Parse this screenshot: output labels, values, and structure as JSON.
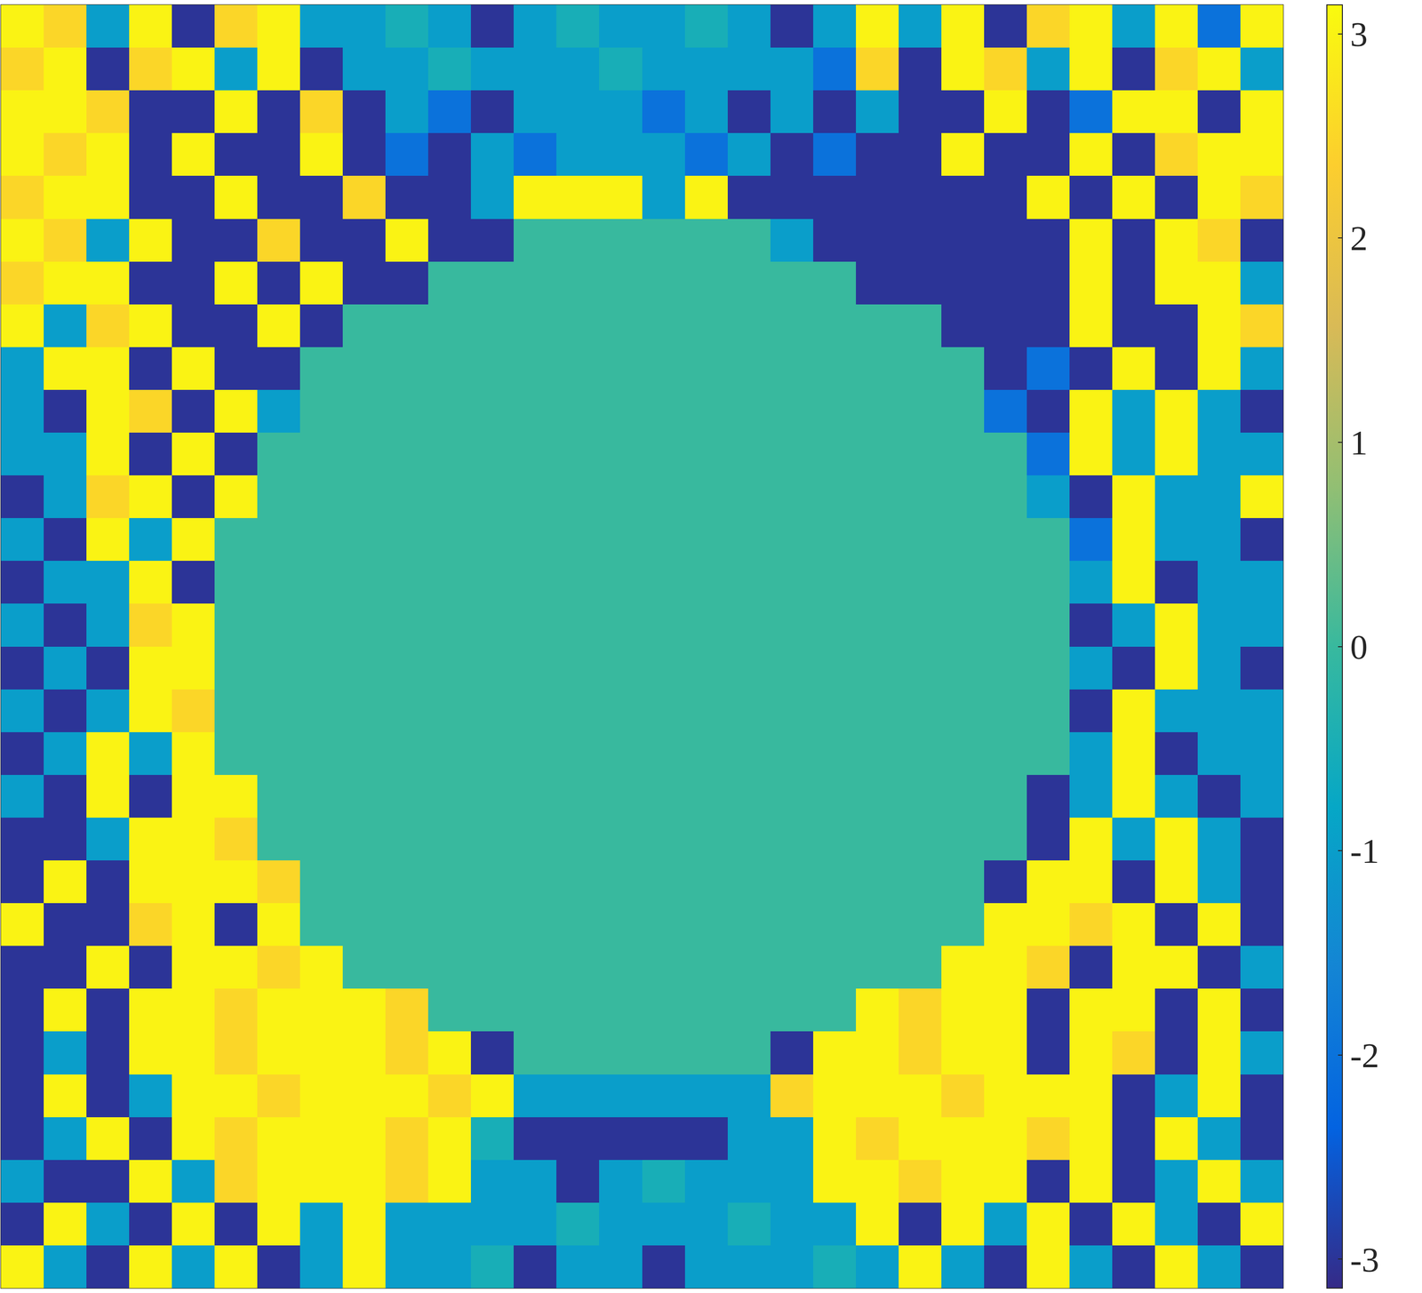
{
  "chart_data": {
    "type": "heatmap",
    "tick_labels": false,
    "x": [
      1,
      2,
      3,
      4,
      5,
      6,
      7,
      8,
      9,
      10,
      11,
      12,
      13,
      14,
      15,
      16,
      17,
      18,
      19,
      20,
      21,
      22,
      23,
      24,
      25,
      26,
      27,
      28,
      29,
      30
    ],
    "y": [
      1,
      2,
      3,
      4,
      5,
      6,
      7,
      8,
      9,
      10,
      11,
      12,
      13,
      14,
      15,
      16,
      17,
      18,
      19,
      20,
      21,
      22,
      23,
      24,
      25,
      26,
      27,
      28,
      29,
      30
    ],
    "xlim": [
      0.5,
      30.5
    ],
    "ylim": [
      30.5,
      0.5
    ],
    "colorbar": {
      "range": [
        -3.1416,
        3.1416
      ],
      "ticks": [
        -3,
        -2,
        -1,
        0,
        1,
        2,
        3
      ]
    },
    "cells": [
      [
        3,
        2.5,
        -1,
        3,
        -3,
        2.5,
        3,
        -1,
        -1,
        -0.5,
        -1,
        -3,
        -1,
        -0.5,
        -1,
        -1,
        -0.5,
        -1,
        -3,
        -1,
        3,
        -1,
        3,
        -3,
        2.5,
        3,
        -1,
        3,
        -2,
        3
      ],
      [
        2.5,
        3,
        -3,
        2.5,
        3,
        -1,
        3,
        -3,
        -1,
        -1,
        -0.5,
        -1,
        -1,
        -1,
        -0.5,
        -1,
        -1,
        -1,
        -1,
        -2,
        2.5,
        -3,
        3,
        2.5,
        -1,
        3,
        -3,
        2.5,
        3,
        -1
      ],
      [
        3,
        3,
        2.5,
        -3,
        -3,
        3,
        -3,
        2.5,
        -3,
        -1,
        -2,
        -3,
        -1,
        -1,
        -1,
        -2,
        -1,
        -3,
        -1,
        -3,
        -1,
        -3,
        -3,
        3,
        -3,
        -2,
        3,
        3,
        -3,
        3
      ],
      [
        3,
        2.5,
        3,
        -3,
        3,
        -3,
        -3,
        3,
        -3,
        -2,
        -3,
        -1,
        -2,
        -1,
        -1,
        -1,
        -2,
        -1,
        -3,
        -2,
        -3,
        -3,
        3,
        -3,
        -3,
        3,
        -3,
        2.5,
        3,
        3
      ],
      [
        2.5,
        3,
        3,
        -3,
        -3,
        3,
        -3,
        -3,
        2.5,
        -3,
        -3,
        -1,
        3,
        3,
        3,
        -1,
        3,
        -3,
        -3,
        -3,
        -3,
        -3,
        -3,
        -3,
        3,
        -3,
        3,
        -3,
        3,
        2.5
      ],
      [
        3,
        2.5,
        -1,
        3,
        -3,
        -3,
        2.5,
        -3,
        -3,
        3,
        -3,
        -3,
        0,
        0,
        0,
        0,
        0,
        0,
        -1,
        -3,
        -3,
        -3,
        -3,
        -3,
        -3,
        3,
        -3,
        3,
        2.5,
        -3
      ],
      [
        2.5,
        3,
        3,
        -3,
        -3,
        3,
        -3,
        3,
        -3,
        -3,
        0,
        0,
        0,
        0,
        0,
        0,
        0,
        0,
        0,
        0,
        -3,
        -3,
        -3,
        -3,
        -3,
        3,
        -3,
        3,
        3,
        -1
      ],
      [
        3,
        -1,
        2.5,
        3,
        -3,
        -3,
        3,
        -3,
        0,
        0,
        0,
        0,
        0,
        0,
        0,
        0,
        0,
        0,
        0,
        0,
        0,
        0,
        -3,
        -3,
        -3,
        3,
        -3,
        -3,
        3,
        2.5
      ],
      [
        -1,
        3,
        3,
        -3,
        3,
        -3,
        -3,
        0,
        0,
        0,
        0,
        0,
        0,
        0,
        0,
        0,
        0,
        0,
        0,
        0,
        0,
        0,
        0,
        -3,
        -2,
        -3,
        3,
        -3,
        3,
        -1
      ],
      [
        -1,
        -3,
        3,
        2.5,
        -3,
        3,
        -1,
        0,
        0,
        0,
        0,
        0,
        0,
        0,
        0,
        0,
        0,
        0,
        0,
        0,
        0,
        0,
        0,
        -2,
        -3,
        3,
        -1,
        3,
        -1,
        -3
      ],
      [
        -1,
        -1,
        3,
        -3,
        3,
        -3,
        0,
        0,
        0,
        0,
        0,
        0,
        0,
        0,
        0,
        0,
        0,
        0,
        0,
        0,
        0,
        0,
        0,
        0,
        -2,
        3,
        -1,
        3,
        -1,
        -1
      ],
      [
        -3,
        -1,
        2.5,
        3,
        -3,
        3,
        0,
        0,
        0,
        0,
        0,
        0,
        0,
        0,
        0,
        0,
        0,
        0,
        0,
        0,
        0,
        0,
        0,
        0,
        -1,
        -3,
        3,
        -1,
        -1,
        3
      ],
      [
        -1,
        -3,
        3,
        -1,
        3,
        0,
        0,
        0,
        0,
        0,
        0,
        0,
        0,
        0,
        0,
        0,
        0,
        0,
        0,
        0,
        0,
        0,
        0,
        0,
        0,
        -2,
        3,
        -1,
        -1,
        -3
      ],
      [
        -3,
        -1,
        -1,
        3,
        -3,
        0,
        0,
        0,
        0,
        0,
        0,
        0,
        0,
        0,
        0,
        0,
        0,
        0,
        0,
        0,
        0,
        0,
        0,
        0,
        0,
        -1,
        3,
        -3,
        -1,
        -1
      ],
      [
        -1,
        -3,
        -1,
        2.5,
        3,
        0,
        0,
        0,
        0,
        0,
        0,
        0,
        0,
        0,
        0,
        0,
        0,
        0,
        0,
        0,
        0,
        0,
        0,
        0,
        0,
        -3,
        -1,
        3,
        -1,
        -1
      ],
      [
        -3,
        -1,
        -3,
        3,
        3,
        0,
        0,
        0,
        0,
        0,
        0,
        0,
        0,
        0,
        0,
        0,
        0,
        0,
        0,
        0,
        0,
        0,
        0,
        0,
        0,
        -1,
        -3,
        3,
        -1,
        -3
      ],
      [
        -1,
        -3,
        -1,
        3,
        2.5,
        0,
        0,
        0,
        0,
        0,
        0,
        0,
        0,
        0,
        0,
        0,
        0,
        0,
        0,
        0,
        0,
        0,
        0,
        0,
        0,
        -3,
        3,
        -1,
        -1,
        -1
      ],
      [
        -3,
        -1,
        3,
        -1,
        3,
        0,
        0,
        0,
        0,
        0,
        0,
        0,
        0,
        0,
        0,
        0,
        0,
        0,
        0,
        0,
        0,
        0,
        0,
        0,
        0,
        -1,
        3,
        -3,
        -1,
        -1
      ],
      [
        -1,
        -3,
        3,
        -3,
        3,
        3,
        0,
        0,
        0,
        0,
        0,
        0,
        0,
        0,
        0,
        0,
        0,
        0,
        0,
        0,
        0,
        0,
        0,
        0,
        -3,
        -1,
        3,
        -1,
        -3,
        -1
      ],
      [
        -3,
        -3,
        -1,
        3,
        3,
        2.5,
        0,
        0,
        0,
        0,
        0,
        0,
        0,
        0,
        0,
        0,
        0,
        0,
        0,
        0,
        0,
        0,
        0,
        0,
        -3,
        3,
        -1,
        3,
        -1,
        -3
      ],
      [
        -3,
        3,
        -3,
        3,
        3,
        3,
        2.5,
        0,
        0,
        0,
        0,
        0,
        0,
        0,
        0,
        0,
        0,
        0,
        0,
        0,
        0,
        0,
        0,
        -3,
        3,
        3,
        -3,
        3,
        -1,
        -3
      ],
      [
        3,
        -3,
        -3,
        2.5,
        3,
        -3,
        3,
        0,
        0,
        0,
        0,
        0,
        0,
        0,
        0,
        0,
        0,
        0,
        0,
        0,
        0,
        0,
        0,
        3,
        3,
        2.5,
        3,
        -3,
        3,
        -3
      ],
      [
        -3,
        -3,
        3,
        -3,
        3,
        3,
        2.5,
        3,
        0,
        0,
        0,
        0,
        0,
        0,
        0,
        0,
        0,
        0,
        0,
        0,
        0,
        0,
        3,
        3,
        2.5,
        -3,
        3,
        3,
        -3,
        -1
      ],
      [
        -3,
        3,
        -3,
        3,
        3,
        2.5,
        3,
        3,
        3,
        2.5,
        0,
        0,
        0,
        0,
        0,
        0,
        0,
        0,
        0,
        0,
        3,
        2.5,
        3,
        3,
        -3,
        3,
        3,
        -3,
        3,
        -3
      ],
      [
        -3,
        -1,
        -3,
        3,
        3,
        2.5,
        3,
        3,
        3,
        2.5,
        3,
        -3,
        0,
        0,
        0,
        0,
        0,
        0,
        -3,
        3,
        3,
        2.5,
        3,
        3,
        -3,
        3,
        2.5,
        -3,
        3,
        -1
      ],
      [
        -3,
        3,
        -3,
        -1,
        3,
        3,
        2.5,
        3,
        3,
        3,
        2.5,
        3,
        -1,
        -1,
        -1,
        -1,
        -1,
        -1,
        2.5,
        3,
        3,
        3,
        2.5,
        3,
        3,
        3,
        -3,
        -1,
        3,
        -3
      ],
      [
        -3,
        -1,
        3,
        -3,
        3,
        2.5,
        3,
        3,
        3,
        2.5,
        3,
        -0.5,
        -3,
        -3,
        -3,
        -3,
        -3,
        -1,
        -1,
        3,
        2.5,
        3,
        3,
        3,
        2.5,
        3,
        -3,
        3,
        -1,
        -3
      ],
      [
        -1,
        -3,
        -3,
        3,
        -1,
        2.5,
        3,
        3,
        3,
        2.5,
        3,
        -1,
        -1,
        -3,
        -1,
        -0.5,
        -1,
        -1,
        -1,
        3,
        3,
        2.5,
        3,
        3,
        -3,
        3,
        -3,
        -1,
        3,
        -1
      ],
      [
        -3,
        3,
        -1,
        -3,
        3,
        -3,
        3,
        -1,
        3,
        -1,
        -1,
        -1,
        -1,
        -0.5,
        -1,
        -1,
        -1,
        -0.5,
        -1,
        -1,
        3,
        -3,
        3,
        -1,
        3,
        -3,
        3,
        -1,
        -3,
        3
      ],
      [
        3,
        -1,
        -3,
        3,
        -1,
        3,
        -3,
        -1,
        3,
        -1,
        -1,
        -0.5,
        -3,
        -1,
        -1,
        -3,
        -1,
        -1,
        -1,
        -0.5,
        -1,
        3,
        -1,
        -3,
        3,
        -1,
        -3,
        3,
        -1,
        -3
      ]
    ]
  }
}
